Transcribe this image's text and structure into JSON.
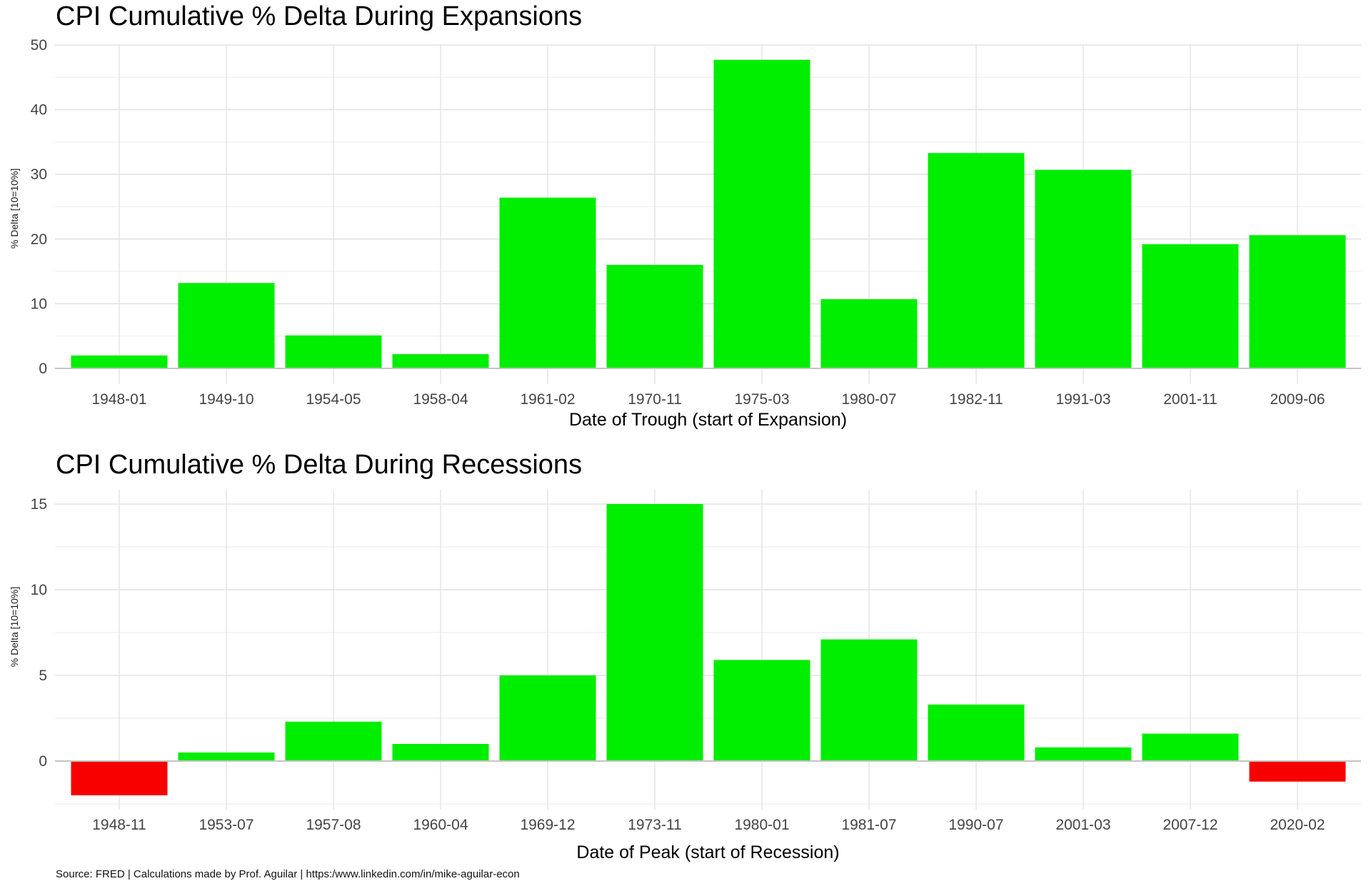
{
  "colors": {
    "positive_bar": "#00EE00",
    "negative_bar": "#F80000",
    "grid_major": "#E3E3E3",
    "grid_minor": "#F1F1F1",
    "axis_zero_line": "#C4C4C4",
    "tick_label": "#444444",
    "title_text": "#000000",
    "background": "#FFFFFF"
  },
  "footer": {
    "source_line": "Source: FRED | Calculations made by Prof. Aguilar | https:/www.linkedin.com/in/mike-aguilar-econ"
  },
  "chart_data": [
    {
      "type": "bar",
      "title": "CPI Cumulative % Delta During Expansions",
      "xlabel": "Date of Trough (start of Expansion)",
      "ylabel": "% Delta [10=10%]",
      "categories": [
        "1948-01",
        "1949-10",
        "1954-05",
        "1958-04",
        "1961-02",
        "1970-11",
        "1975-03",
        "1980-07",
        "1982-11",
        "1991-03",
        "2001-11",
        "2009-06"
      ],
      "values": [
        2.0,
        13.2,
        5.1,
        2.2,
        26.4,
        16.0,
        47.7,
        10.7,
        33.3,
        30.7,
        19.2,
        20.6
      ],
      "ylim": [
        0,
        50
      ],
      "yticks": [
        0,
        10,
        20,
        30,
        40,
        50
      ],
      "yticks_minor": [
        5,
        15,
        25,
        35,
        45
      ],
      "grid": true,
      "legend": "none"
    },
    {
      "type": "bar",
      "title": "CPI Cumulative % Delta During Recessions",
      "xlabel": "Date of Peak (start of Recession)",
      "ylabel": "% Delta [10=10%]",
      "categories": [
        "1948-11",
        "1953-07",
        "1957-08",
        "1960-04",
        "1969-12",
        "1973-11",
        "1980-01",
        "1981-07",
        "1990-07",
        "2001-03",
        "2007-12",
        "2020-02"
      ],
      "values": [
        -2.0,
        0.5,
        2.3,
        1.0,
        5.0,
        15.0,
        5.9,
        7.1,
        3.3,
        0.8,
        1.6,
        -1.2
      ],
      "ylim": [
        -2.5,
        15
      ],
      "yticks": [
        0,
        5,
        10,
        15
      ],
      "yticks_minor": [
        -2.5,
        2.5,
        7.5,
        12.5
      ],
      "grid": true,
      "legend": "none"
    }
  ]
}
